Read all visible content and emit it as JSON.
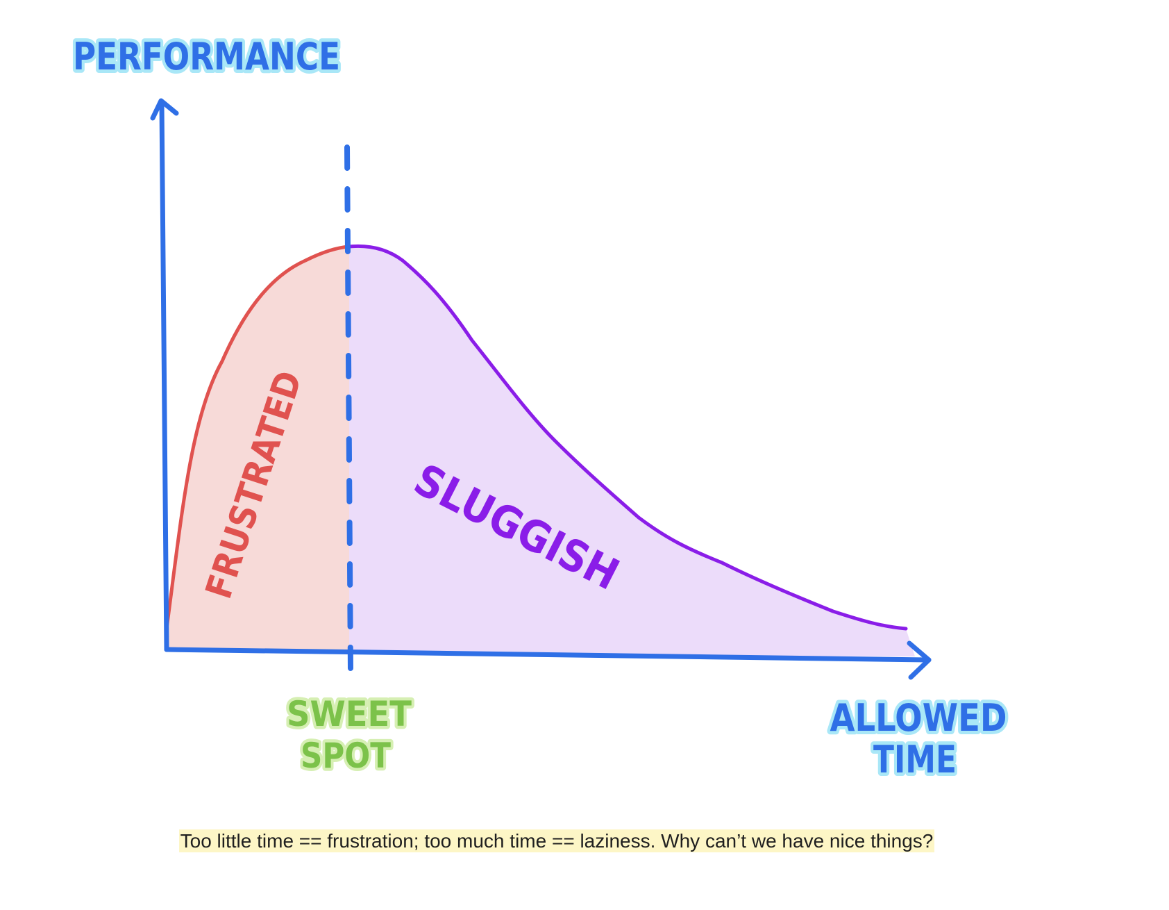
{
  "diagram": {
    "y_axis_label": "PERFORMANCE",
    "x_axis_label_line1": "ALLOWED",
    "x_axis_label_line2": "TIME",
    "left_region_label": "FRUSTRATED",
    "right_region_label": "SLUGGISH",
    "marker_label_line1": "SWEET",
    "marker_label_line2": "SPOT",
    "colors": {
      "axis": "#2f6fe6",
      "axis_label": "#2f6fe6",
      "axis_label_shadow": "#a9e7f7",
      "frustrated_line": "#e0524f",
      "frustrated_fill": "#f7dad8",
      "sluggish_line": "#8a1de8",
      "sluggish_fill": "#ecdcfa",
      "sweet_spot": "#7cc24a",
      "sweet_spot_shadow": "#d6efb3",
      "marker_line": "#2f6fe6"
    }
  },
  "caption": "Too little time == frustration; too much time == laziness. Why can’t we have nice things?"
}
